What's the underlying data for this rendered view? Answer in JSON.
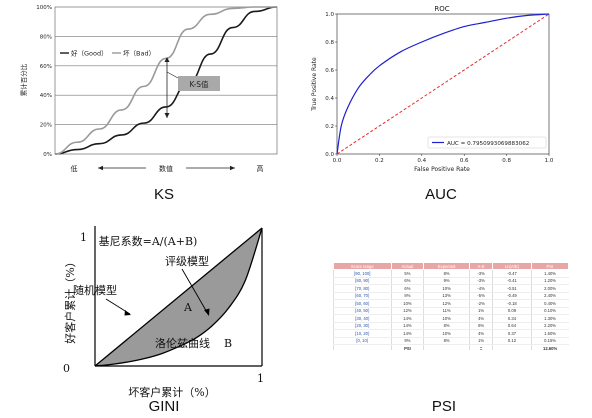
{
  "captions": {
    "ks": "KS",
    "auc": "AUC",
    "gini": "GINI",
    "psi": "PSI"
  },
  "chart_data": [
    {
      "id": "ks",
      "type": "line",
      "ylabel": "累计百分比",
      "xlabel": "数值",
      "x_low": "低",
      "x_high": "高",
      "y_ticks": [
        "0%",
        "20%",
        "40%",
        "60%",
        "80%",
        "100%"
      ],
      "ylim": [
        0,
        100
      ],
      "annotation": "K-S值",
      "grid": true,
      "legend": "top-left",
      "series": [
        {
          "name": "好（Good）",
          "color": "#1a1a1a",
          "x": [
            0,
            0.1,
            0.2,
            0.3,
            0.4,
            0.5,
            0.6,
            0.7,
            0.8,
            0.9,
            1.0
          ],
          "values": [
            0,
            3,
            7,
            13,
            21,
            32,
            48,
            68,
            86,
            97,
            100
          ]
        },
        {
          "name": "坏（Bad）",
          "color": "#9a9a9a",
          "x": [
            0,
            0.1,
            0.2,
            0.3,
            0.4,
            0.5,
            0.6,
            0.7,
            0.8,
            0.9,
            1.0
          ],
          "values": [
            0,
            8,
            17,
            30,
            46,
            65,
            85,
            95,
            99,
            100,
            100
          ]
        }
      ]
    },
    {
      "id": "auc",
      "type": "line",
      "title": "ROC",
      "xlabel": "False Positive Rate",
      "ylabel": "True Positive Rate",
      "xlim": [
        0,
        1
      ],
      "ylim": [
        0,
        1
      ],
      "x_ticks": [
        "0.0",
        "0.2",
        "0.4",
        "0.6",
        "0.8",
        "1.0"
      ],
      "y_ticks": [
        "0.0",
        "0.2",
        "0.4",
        "0.6",
        "0.8",
        "1.0"
      ],
      "legend": "bottom-right",
      "series": [
        {
          "name": "AUC = 0.7950993069883062",
          "color": "#1f1fd0",
          "x": [
            0,
            0.02,
            0.05,
            0.1,
            0.15,
            0.2,
            0.3,
            0.4,
            0.5,
            0.6,
            0.7,
            0.8,
            0.9,
            1.0
          ],
          "values": [
            0,
            0.2,
            0.33,
            0.47,
            0.56,
            0.63,
            0.73,
            0.8,
            0.86,
            0.91,
            0.94,
            0.97,
            0.99,
            1.0
          ]
        },
        {
          "name": "",
          "color": "#e03030",
          "dashed": true,
          "x": [
            0,
            1
          ],
          "values": [
            0,
            1
          ]
        }
      ]
    },
    {
      "id": "gini",
      "type": "area",
      "xlabel": "坏客户累计（%）",
      "ylabel": "好客户累计（%）",
      "title": "基尼系数=A/(A+B)",
      "label_random": "随机模型",
      "label_rating": "评级模型",
      "label_lorenz": "洛伦兹曲线",
      "label_A": "A",
      "label_B": "B",
      "x_ticks": [
        "0",
        "1"
      ],
      "y_ticks": [
        "1"
      ],
      "lorenz_x": [
        0,
        0.1,
        0.2,
        0.3,
        0.4,
        0.5,
        0.6,
        0.7,
        0.8,
        0.9,
        1.0
      ],
      "lorenz_y": [
        0,
        0.012,
        0.03,
        0.055,
        0.09,
        0.14,
        0.2,
        0.29,
        0.42,
        0.62,
        1.0
      ]
    },
    {
      "id": "psi",
      "type": "table",
      "columns": [
        "Score range",
        "Actual",
        "Expected",
        "A-E",
        "Ln(A/E)",
        "PSI"
      ],
      "rows": [
        [
          "[90, 100]",
          "5%",
          "8%",
          "-3%",
          "-0.47",
          "1.40%"
        ],
        [
          "[80, 90)",
          "6%",
          "9%",
          "-3%",
          "-0.41",
          "1.20%"
        ],
        [
          "[70, 80)",
          "6%",
          "10%",
          "-4%",
          "-0.51",
          "2.00%"
        ],
        [
          "[60, 70)",
          "8%",
          "13%",
          "-5%",
          "-0.49",
          "2.40%"
        ],
        [
          "[50, 60)",
          "10%",
          "12%",
          "-2%",
          "-0.18",
          "0.40%"
        ],
        [
          "[40, 50)",
          "12%",
          "11%",
          "1%",
          "0.09",
          "0.10%"
        ],
        [
          "[30, 40)",
          "14%",
          "10%",
          "4%",
          "0.34",
          "1.30%"
        ],
        [
          "[20, 30)",
          "14%",
          "8%",
          "6%",
          "0.64",
          "2.20%"
        ],
        [
          "[10, 20)",
          "14%",
          "10%",
          "4%",
          "0.37",
          "1.50%"
        ],
        [
          "[0, 10)",
          "9%",
          "8%",
          "1%",
          "0.12",
          "0.15%"
        ]
      ],
      "total": [
        "",
        "PSI",
        "",
        "=",
        "",
        "12.60%"
      ]
    }
  ]
}
